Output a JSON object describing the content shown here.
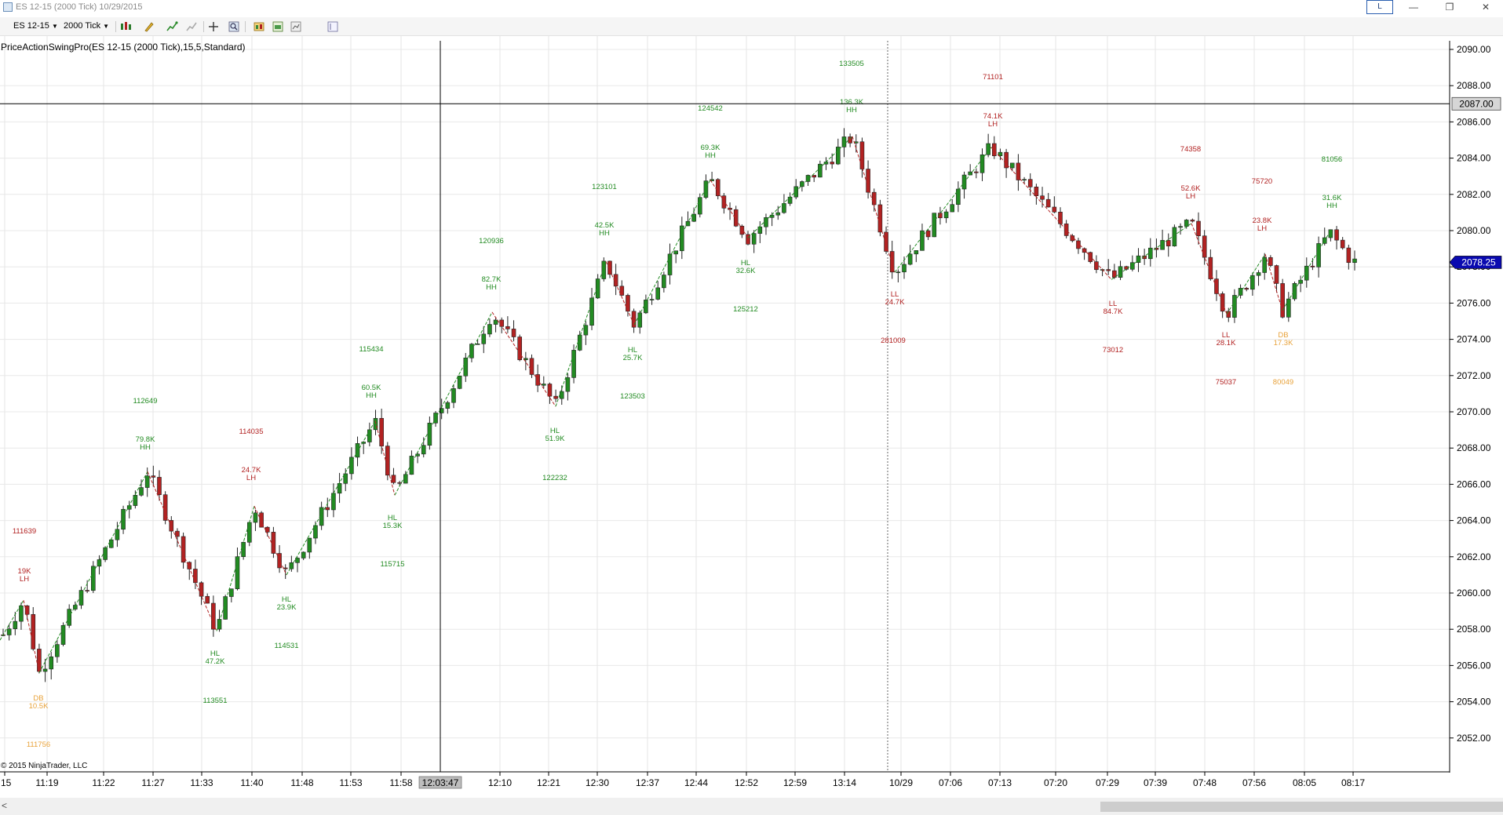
{
  "window": {
    "title": "ES 12-15 (2000 Tick)  10/29/2015",
    "btn_L": "L",
    "minimize": "—",
    "restore": "❐",
    "close": "✕"
  },
  "toolbar": {
    "instrument": "ES 12-15",
    "period": "2000 Tick"
  },
  "indicator_label": "PriceActionSwingPro(ES 12-15 (2000 Tick),15,5,Standard)",
  "copyright": "© 2015 NinjaTrader, LLC",
  "price_axis": {
    "ticks": [
      "2090.00",
      "2088.00",
      "2086.00",
      "2084.00",
      "2082.00",
      "2080.00",
      "2078.00",
      "2076.00",
      "2074.00",
      "2072.00",
      "2070.00",
      "2068.00",
      "2066.00",
      "2064.00",
      "2062.00",
      "2060.00",
      "2058.00",
      "2056.00",
      "2054.00",
      "2052.00"
    ],
    "crosshair_label": "2087.00",
    "last_price_label": "2078.25",
    "last_price_color": "#0a0ab0"
  },
  "time_axis": {
    "ticks": [
      ":15",
      "11:19",
      "11:22",
      "11:27",
      "11:33",
      "11:40",
      "11:48",
      "11:53",
      "11:58",
      "12:10",
      "12:21",
      "12:30",
      "12:37",
      "12:44",
      "12:52",
      "12:59",
      "13:14",
      "10/29",
      "07:06",
      "07:13",
      "07:20",
      "07:29",
      "07:39",
      "07:48",
      "07:56",
      "08:05",
      "08:17"
    ],
    "crosshair_label": "12:03:47"
  },
  "colors": {
    "up": "#228b22",
    "down": "#b22222",
    "db": "#e8a23a"
  },
  "swing_labels": [
    {
      "t": "111639",
      "c": "down"
    },
    {
      "t": "19K",
      "c": "down"
    },
    {
      "t": "LH",
      "c": "down"
    },
    {
      "t": "DB",
      "c": "db"
    },
    {
      "t": "10.5K",
      "c": "db"
    },
    {
      "t": "111756",
      "c": "db"
    },
    {
      "t": "112649",
      "c": "up"
    },
    {
      "t": "79.8K",
      "c": "up"
    },
    {
      "t": "HH",
      "c": "up"
    },
    {
      "t": "HL",
      "c": "up"
    },
    {
      "t": "47.2K",
      "c": "up"
    },
    {
      "t": "113551",
      "c": "up"
    },
    {
      "t": "114035",
      "c": "down"
    },
    {
      "t": "24.7K",
      "c": "down"
    },
    {
      "t": "LH",
      "c": "down"
    },
    {
      "t": "HL",
      "c": "up"
    },
    {
      "t": "23.9K",
      "c": "up"
    },
    {
      "t": "114531",
      "c": "up"
    },
    {
      "t": "115434",
      "c": "up"
    },
    {
      "t": "60.5K",
      "c": "up"
    },
    {
      "t": "HH",
      "c": "up"
    },
    {
      "t": "HL",
      "c": "up"
    },
    {
      "t": "15.3K",
      "c": "up"
    },
    {
      "t": "115715",
      "c": "up"
    },
    {
      "t": "120936",
      "c": "up"
    },
    {
      "t": "82.7K",
      "c": "up"
    },
    {
      "t": "HH",
      "c": "up"
    },
    {
      "t": "HL",
      "c": "up"
    },
    {
      "t": "51.9K",
      "c": "up"
    },
    {
      "t": "122232",
      "c": "up"
    },
    {
      "t": "123101",
      "c": "up"
    },
    {
      "t": "42.5K",
      "c": "up"
    },
    {
      "t": "HH",
      "c": "up"
    },
    {
      "t": "HL",
      "c": "up"
    },
    {
      "t": "25.7K",
      "c": "up"
    },
    {
      "t": "123503",
      "c": "up"
    },
    {
      "t": "124542",
      "c": "up"
    },
    {
      "t": "69.3K",
      "c": "up"
    },
    {
      "t": "HH",
      "c": "up"
    },
    {
      "t": "HL",
      "c": "up"
    },
    {
      "t": "32.6K",
      "c": "up"
    },
    {
      "t": "125212",
      "c": "up"
    },
    {
      "t": "133505",
      "c": "up"
    },
    {
      "t": "136.3K",
      "c": "up"
    },
    {
      "t": "HH",
      "c": "up"
    },
    {
      "t": "LL",
      "c": "down"
    },
    {
      "t": "24.7K",
      "c": "down"
    },
    {
      "t": "281009",
      "c": "down"
    },
    {
      "t": "71101",
      "c": "down"
    },
    {
      "t": "74.1K",
      "c": "down"
    },
    {
      "t": "LH",
      "c": "down"
    },
    {
      "t": "LL",
      "c": "down"
    },
    {
      "t": "84.7K",
      "c": "down"
    },
    {
      "t": "73012",
      "c": "down"
    },
    {
      "t": "74358",
      "c": "down"
    },
    {
      "t": "52.6K",
      "c": "down"
    },
    {
      "t": "LH",
      "c": "down"
    },
    {
      "t": "LL",
      "c": "down"
    },
    {
      "t": "28.1K",
      "c": "down"
    },
    {
      "t": "75037",
      "c": "down"
    },
    {
      "t": "75720",
      "c": "down"
    },
    {
      "t": "23.8K",
      "c": "down"
    },
    {
      "t": "LH",
      "c": "down"
    },
    {
      "t": "DB",
      "c": "db"
    },
    {
      "t": "17.3K",
      "c": "db"
    },
    {
      "t": "80049",
      "c": "db"
    },
    {
      "t": "81056",
      "c": "up"
    },
    {
      "t": "31.6K",
      "c": "up"
    },
    {
      "t": "HH",
      "c": "up"
    }
  ]
}
